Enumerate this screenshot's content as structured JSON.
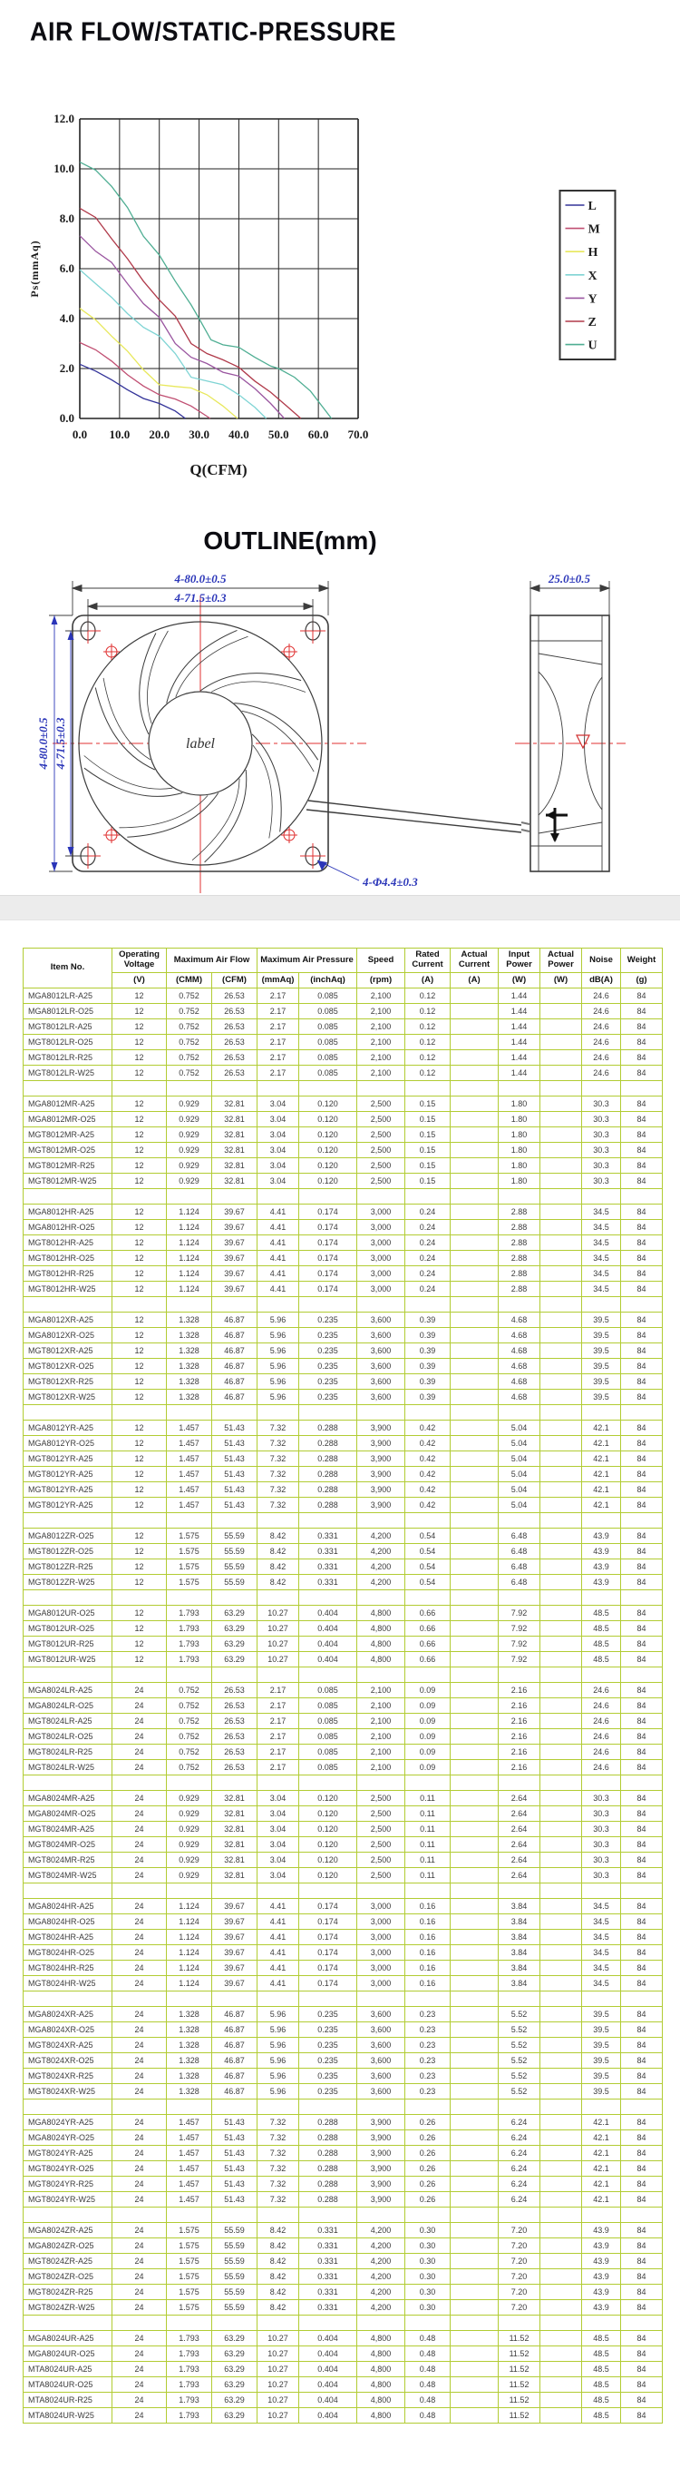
{
  "chart_data": {
    "type": "line",
    "title": "AIR FLOW/STATIC-PRESSURE",
    "xlabel": "Q(CFM)",
    "ylabel": "Ps(mmAq)",
    "xlim": [
      0,
      70
    ],
    "ylim": [
      0,
      12
    ],
    "grid": true,
    "legend_position": "right",
    "xtick_labels": [
      "0.0",
      "10.0",
      "20.0",
      "30.0",
      "40.0",
      "50.0",
      "60.0",
      "70.0"
    ],
    "ytick_labels": [
      "12.0",
      "10.0",
      "8.0",
      "6.0",
      "4.0",
      "2.0",
      "0.0"
    ],
    "series": [
      {
        "name": "L",
        "color": "#333399",
        "points": [
          [
            0,
            2.17
          ],
          [
            4,
            1.9
          ],
          [
            8,
            1.55
          ],
          [
            12,
            1.15
          ],
          [
            16,
            0.8
          ],
          [
            20,
            0.6
          ],
          [
            24,
            0.3
          ],
          [
            26.53,
            0
          ]
        ]
      },
      {
        "name": "M",
        "color": "#c04f72",
        "points": [
          [
            0,
            3.04
          ],
          [
            4,
            2.75
          ],
          [
            8,
            2.3
          ],
          [
            12,
            1.75
          ],
          [
            16,
            1.3
          ],
          [
            20,
            0.95
          ],
          [
            24,
            0.78
          ],
          [
            28,
            0.5
          ],
          [
            32.81,
            0
          ]
        ]
      },
      {
        "name": "H",
        "color": "#e8e85c",
        "points": [
          [
            0,
            4.41
          ],
          [
            4,
            3.95
          ],
          [
            8,
            3.3
          ],
          [
            12,
            2.7
          ],
          [
            16,
            1.95
          ],
          [
            20,
            1.35
          ],
          [
            24,
            1.28
          ],
          [
            28,
            1.22
          ],
          [
            32,
            0.95
          ],
          [
            36,
            0.5
          ],
          [
            39.67,
            0
          ]
        ]
      },
      {
        "name": "X",
        "color": "#7fd4d4",
        "points": [
          [
            0,
            5.96
          ],
          [
            4,
            5.4
          ],
          [
            8,
            4.85
          ],
          [
            12,
            4.2
          ],
          [
            16,
            3.65
          ],
          [
            20,
            3.3
          ],
          [
            24,
            2.6
          ],
          [
            28,
            1.65
          ],
          [
            32,
            1.5
          ],
          [
            36,
            1.35
          ],
          [
            40,
            0.95
          ],
          [
            44,
            0.45
          ],
          [
            46.87,
            0
          ]
        ]
      },
      {
        "name": "Y",
        "color": "#9a56a0",
        "points": [
          [
            0,
            7.32
          ],
          [
            4,
            6.7
          ],
          [
            8,
            6.25
          ],
          [
            12,
            5.4
          ],
          [
            16,
            4.6
          ],
          [
            20,
            4.05
          ],
          [
            24,
            3.0
          ],
          [
            28,
            2.45
          ],
          [
            32,
            2.2
          ],
          [
            36,
            1.85
          ],
          [
            40,
            1.7
          ],
          [
            44,
            1.2
          ],
          [
            48,
            0.6
          ],
          [
            51.43,
            0
          ]
        ]
      },
      {
        "name": "Z",
        "color": "#b03a4a",
        "points": [
          [
            0,
            8.42
          ],
          [
            4,
            8.05
          ],
          [
            8,
            7.2
          ],
          [
            12,
            6.4
          ],
          [
            16,
            5.5
          ],
          [
            20,
            4.75
          ],
          [
            24,
            4.1
          ],
          [
            28,
            3.0
          ],
          [
            32,
            2.6
          ],
          [
            36,
            2.35
          ],
          [
            40,
            2.05
          ],
          [
            44,
            1.5
          ],
          [
            48,
            1.05
          ],
          [
            52,
            0.5
          ],
          [
            55.59,
            0
          ]
        ]
      },
      {
        "name": "U",
        "color": "#4fae93",
        "points": [
          [
            0,
            10.27
          ],
          [
            4,
            9.95
          ],
          [
            8,
            9.3
          ],
          [
            12,
            8.45
          ],
          [
            16,
            7.3
          ],
          [
            20,
            6.55
          ],
          [
            24,
            5.5
          ],
          [
            28,
            4.55
          ],
          [
            30,
            4.0
          ],
          [
            33,
            3.15
          ],
          [
            36,
            2.95
          ],
          [
            40,
            2.85
          ],
          [
            44,
            2.45
          ],
          [
            48,
            2.1
          ],
          [
            50,
            2.0
          ],
          [
            54,
            1.65
          ],
          [
            58,
            1.1
          ],
          [
            63.29,
            0
          ]
        ]
      }
    ]
  },
  "outline": {
    "title": "OUTLINE(mm)",
    "dim_outer_h": "4-80.0±0.5",
    "dim_inner_h": "4-71.5±0.3",
    "dim_outer_v": "4-80.0±0.5",
    "dim_inner_v": "4-71.5±0.3",
    "dim_depth": "25.0±0.5",
    "dim_holes": "4-Φ4.4±0.3",
    "hub_label": "label"
  },
  "table": {
    "header": {
      "item": "Item No.",
      "operating_voltage": "Operating Voltage",
      "max_air_flow": "Maximum Air Flow",
      "max_air_pressure": "Maximum Air Pressure",
      "speed": "Speed",
      "rated_current": "Rated Current",
      "actual_current": "Actual Current",
      "input_power": "Input Power",
      "actual_power": "Actual Power",
      "noise": "Noise",
      "weight": "Weight",
      "units": {
        "v": "(V)",
        "cmm": "(CMM)",
        "cfm": "(CFM)",
        "mmaq": "(mmAq)",
        "inchaq": "(inchAq)",
        "rpm": "(rpm)",
        "a1": "(A)",
        "a2": "(A)",
        "w1": "(W)",
        "w2": "(W)",
        "dba": "dB(A)",
        "g": "(g)"
      }
    },
    "groups": [
      {
        "items": [
          "MGA8012LR-A25",
          "MGA8012LR-O25",
          "MGT8012LR-A25",
          "MGT8012LR-O25",
          "MGT8012LR-R25",
          "MGT8012LR-W25"
        ],
        "values": [
          "12",
          "0.752",
          "26.53",
          "2.17",
          "0.085",
          "2,100",
          "0.12",
          "",
          "1.44",
          "",
          "24.6",
          "84"
        ]
      },
      {
        "items": [
          "MGA8012MR-A25",
          "MGA8012MR-O25",
          "MGT8012MR-A25",
          "MGT8012MR-O25",
          "MGT8012MR-R25",
          "MGT8012MR-W25"
        ],
        "values": [
          "12",
          "0.929",
          "32.81",
          "3.04",
          "0.120",
          "2,500",
          "0.15",
          "",
          "1.80",
          "",
          "30.3",
          "84"
        ]
      },
      {
        "items": [
          "MGA8012HR-A25",
          "MGA8012HR-O25",
          "MGT8012HR-A25",
          "MGT8012HR-O25",
          "MGT8012HR-R25",
          "MGT8012HR-W25"
        ],
        "values": [
          "12",
          "1.124",
          "39.67",
          "4.41",
          "0.174",
          "3,000",
          "0.24",
          "",
          "2.88",
          "",
          "34.5",
          "84"
        ]
      },
      {
        "items": [
          "MGA8012XR-A25",
          "MGA8012XR-O25",
          "MGT8012XR-A25",
          "MGT8012XR-O25",
          "MGT8012XR-R25",
          "MGT8012XR-W25"
        ],
        "values": [
          "12",
          "1.328",
          "46.87",
          "5.96",
          "0.235",
          "3,600",
          "0.39",
          "",
          "4.68",
          "",
          "39.5",
          "84"
        ]
      },
      {
        "items": [
          "MGA8012YR-A25",
          "MGA8012YR-O25",
          "MGT8012YR-A25",
          "MGT8012YR-A25",
          "MGT8012YR-A25",
          "MGT8012YR-A25"
        ],
        "values": [
          "12",
          "1.457",
          "51.43",
          "7.32",
          "0.288",
          "3,900",
          "0.42",
          "",
          "5.04",
          "",
          "42.1",
          "84"
        ]
      },
      {
        "items": [
          "MGA8012ZR-O25",
          "MGT8012ZR-O25",
          "MGT8012ZR-R25",
          "MGT8012ZR-W25"
        ],
        "values": [
          "12",
          "1.575",
          "55.59",
          "8.42",
          "0.331",
          "4,200",
          "0.54",
          "",
          "6.48",
          "",
          "43.9",
          "84"
        ]
      },
      {
        "items": [
          "MGA8012UR-O25",
          "MGT8012UR-O25",
          "MGT8012UR-R25",
          "MGT8012UR-W25"
        ],
        "values": [
          "12",
          "1.793",
          "63.29",
          "10.27",
          "0.404",
          "4,800",
          "0.66",
          "",
          "7.92",
          "",
          "48.5",
          "84"
        ]
      },
      {
        "items": [
          "MGA8024LR-A25",
          "MGA8024LR-O25",
          "MGT8024LR-A25",
          "MGT8024LR-O25",
          "MGT8024LR-R25",
          "MGT8024LR-W25"
        ],
        "values": [
          "24",
          "0.752",
          "26.53",
          "2.17",
          "0.085",
          "2,100",
          "0.09",
          "",
          "2.16",
          "",
          "24.6",
          "84"
        ]
      },
      {
        "items": [
          "MGA8024MR-A25",
          "MGA8024MR-O25",
          "MGT8024MR-A25",
          "MGT8024MR-O25",
          "MGT8024MR-R25",
          "MGT8024MR-W25"
        ],
        "values": [
          "24",
          "0.929",
          "32.81",
          "3.04",
          "0.120",
          "2,500",
          "0.11",
          "",
          "2.64",
          "",
          "30.3",
          "84"
        ]
      },
      {
        "items": [
          "MGA8024HR-A25",
          "MGA8024HR-O25",
          "MGT8024HR-A25",
          "MGT8024HR-O25",
          "MGT8024HR-R25",
          "MGT8024HR-W25"
        ],
        "values": [
          "24",
          "1.124",
          "39.67",
          "4.41",
          "0.174",
          "3,000",
          "0.16",
          "",
          "3.84",
          "",
          "34.5",
          "84"
        ]
      },
      {
        "items": [
          "MGA8024XR-A25",
          "MGA8024XR-O25",
          "MGT8024XR-A25",
          "MGT8024XR-O25",
          "MGT8024XR-R25",
          "MGT8024XR-W25"
        ],
        "values": [
          "24",
          "1.328",
          "46.87",
          "5.96",
          "0.235",
          "3,600",
          "0.23",
          "",
          "5.52",
          "",
          "39.5",
          "84"
        ]
      },
      {
        "items": [
          "MGA8024YR-A25",
          "MGA8024YR-O25",
          "MGT8024YR-A25",
          "MGT8024YR-O25",
          "MGT8024YR-R25",
          "MGT8024YR-W25"
        ],
        "values": [
          "24",
          "1.457",
          "51.43",
          "7.32",
          "0.288",
          "3,900",
          "0.26",
          "",
          "6.24",
          "",
          "42.1",
          "84"
        ]
      },
      {
        "items": [
          "MGA8024ZR-A25",
          "MGA8024ZR-O25",
          "MGT8024ZR-A25",
          "MGT8024ZR-O25",
          "MGT8024ZR-R25",
          "MGT8024ZR-W25"
        ],
        "values": [
          "24",
          "1.575",
          "55.59",
          "8.42",
          "0.331",
          "4,200",
          "0.30",
          "",
          "7.20",
          "",
          "43.9",
          "84"
        ]
      },
      {
        "items": [
          "MGA8024UR-A25",
          "MGA8024UR-O25",
          "MTA8024UR-A25",
          "MTA8024UR-O25",
          "MTA8024UR-R25",
          "MTA8024UR-W25"
        ],
        "values": [
          "24",
          "1.793",
          "63.29",
          "10.27",
          "0.404",
          "4,800",
          "0.48",
          "",
          "11.52",
          "",
          "48.5",
          "84"
        ]
      }
    ]
  }
}
